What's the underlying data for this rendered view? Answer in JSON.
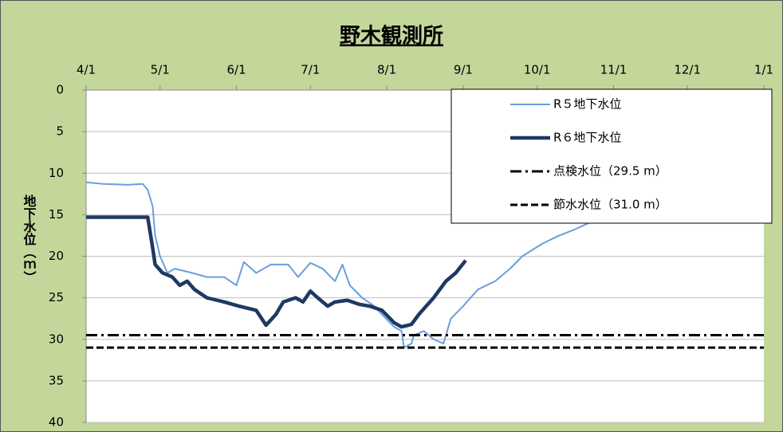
{
  "chart_data": {
    "type": "line",
    "title": "野木観測所",
    "y_label": "地下水位（ｍ）",
    "xlim": [
      0,
      275
    ],
    "xticks": [
      {
        "value": 0,
        "label": "4/1"
      },
      {
        "value": 30,
        "label": "5/1"
      },
      {
        "value": 61,
        "label": "6/1"
      },
      {
        "value": 91,
        "label": "7/1"
      },
      {
        "value": 122,
        "label": "8/1"
      },
      {
        "value": 153,
        "label": "9/1"
      },
      {
        "value": 183,
        "label": "10/1"
      },
      {
        "value": 214,
        "label": "11/1"
      },
      {
        "value": 244,
        "label": "12/1"
      },
      {
        "value": 275,
        "label": "1/1"
      }
    ],
    "ylim": [
      0,
      40
    ],
    "yticks": [
      0,
      5,
      10,
      15,
      20,
      25,
      30,
      35,
      40
    ],
    "y_inverted": true,
    "x_axis_position": "top",
    "grid": true,
    "legend_position": "top-right",
    "series": [
      {
        "name": "R５地下水位",
        "color": "#6a9fdb",
        "width": 2,
        "x": [
          0,
          7,
          17,
          23,
          25,
          27,
          28,
          30,
          33,
          36,
          43,
          49,
          56,
          61,
          64,
          69,
          75,
          82,
          86,
          91,
          96,
          101,
          104,
          107,
          112,
          117,
          120,
          125,
          128,
          129,
          132,
          133,
          137,
          141,
          145,
          148,
          153,
          159,
          166,
          172,
          177,
          185,
          192,
          198,
          204,
          211,
          216
        ],
        "values": [
          11.1,
          11.3,
          11.4,
          11.3,
          12,
          14,
          17.5,
          20,
          22,
          21.5,
          22,
          22.5,
          22.5,
          23.5,
          20.7,
          22,
          21,
          21,
          22.5,
          20.8,
          21.5,
          23,
          21,
          23.5,
          25,
          26,
          27,
          28.5,
          29,
          31,
          30.5,
          29.5,
          29,
          30,
          30.5,
          27.5,
          26,
          24,
          23,
          21.5,
          20,
          18.5,
          17.5,
          16.8,
          16,
          15.5,
          15.3
        ]
      },
      {
        "name": "R６地下水位",
        "color": "#1f3864",
        "width": 4.5,
        "x": [
          0,
          25,
          27,
          28,
          31,
          35,
          38,
          41,
          44,
          49,
          56,
          62,
          69,
          73,
          77,
          80,
          85,
          88,
          91,
          94,
          98,
          101,
          106,
          111,
          115,
          120,
          125,
          128,
          132,
          135,
          138,
          141,
          146,
          150,
          154
        ],
        "values": [
          15.3,
          15.3,
          19,
          21,
          22,
          22.5,
          23.5,
          23,
          24,
          25,
          25.5,
          26,
          26.5,
          28.3,
          27,
          25.5,
          25,
          25.5,
          24.2,
          25,
          26,
          25.5,
          25.3,
          25.8,
          26,
          26.5,
          28,
          28.5,
          28.2,
          27,
          26,
          25,
          23,
          22,
          20.5
        ]
      }
    ],
    "reference_lines": [
      {
        "name": "点検水位（29.5 m）",
        "value": 29.5,
        "style": "dashdot",
        "color": "#000000"
      },
      {
        "name": "節水水位（31.0 m）",
        "value": 31.0,
        "style": "dashed",
        "color": "#000000"
      }
    ]
  }
}
